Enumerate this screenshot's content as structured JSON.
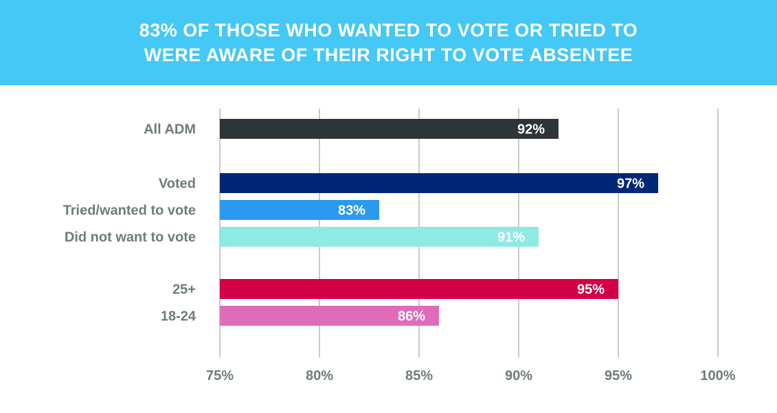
{
  "header": {
    "line1": "83% OF THOSE WHO WANTED TO VOTE OR TRIED TO",
    "line2": "WERE AWARE OF THEIR RIGHT TO VOTE ABSENTEE",
    "background_color": "#44c8f5"
  },
  "chart_data": {
    "type": "bar",
    "orientation": "horizontal",
    "title": "83% OF THOSE WHO WANTED TO VOTE OR TRIED TO WERE AWARE OF THEIR RIGHT TO VOTE ABSENTEE",
    "categories": [
      "All ADM",
      "Voted",
      "Tried/wanted to vote",
      "Did not want to vote",
      "25+",
      "18-24"
    ],
    "values": [
      92,
      97,
      83,
      91,
      95,
      86
    ],
    "value_labels": [
      "92%",
      "97%",
      "83%",
      "91%",
      "95%",
      "86%"
    ],
    "colors": [
      "#2e3538",
      "#002776",
      "#2b99ef",
      "#8eebe4",
      "#d40045",
      "#df6bb9"
    ],
    "groups": [
      [
        "All ADM"
      ],
      [
        "Voted",
        "Tried/wanted to vote",
        "Did not want to vote"
      ],
      [
        "25+",
        "18-24"
      ]
    ],
    "xlim": [
      75,
      100
    ],
    "xticks": [
      75,
      80,
      85,
      90,
      95,
      100
    ],
    "xtick_labels": [
      "75%",
      "80%",
      "85%",
      "90%",
      "95%",
      "100%"
    ],
    "grid": "vertical",
    "gridline_color": "#c9c9c9",
    "label_color": "#6f7b7c",
    "xlabel": "",
    "ylabel": ""
  }
}
